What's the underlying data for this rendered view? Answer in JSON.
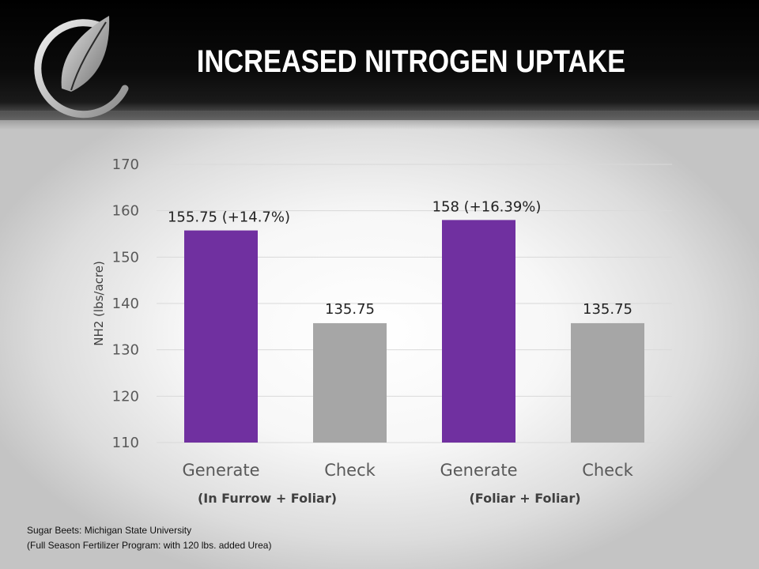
{
  "slide": {
    "title": "INCREASED NITROGEN UPTAKE"
  },
  "chart_data": {
    "type": "bar",
    "title": "INCREASED NITROGEN UPTAKE",
    "ylabel": "NH2 (lbs/acre)",
    "xlabel": "",
    "ylim": [
      110,
      170
    ],
    "yticks": [
      110,
      120,
      130,
      140,
      150,
      160,
      170
    ],
    "grid": true,
    "categories": [
      "Generate",
      "Check",
      "Generate",
      "Check"
    ],
    "values": [
      155.75,
      135.75,
      158,
      135.75
    ],
    "data_labels": [
      "155.75",
      "135.75",
      "158",
      "135.75"
    ],
    "annotations": [
      "(+14.7%)",
      "",
      "(+16.39%)",
      ""
    ],
    "bar_colors": [
      "#7030a0",
      "#a6a6a6",
      "#7030a0",
      "#a6a6a6"
    ],
    "groups": [
      "(In Furrow + Foliar)",
      "(Foliar + Foliar)"
    ]
  },
  "footnotes": [
    "Sugar Beets: Michigan State University",
    "(Full Season Fertilizer Program:  with 120 lbs. added Urea)"
  ],
  "colors": {
    "purple": "#7030a0",
    "gray": "#a6a6a6",
    "grid": "#d9d9d9",
    "axis_text": "#595959"
  }
}
